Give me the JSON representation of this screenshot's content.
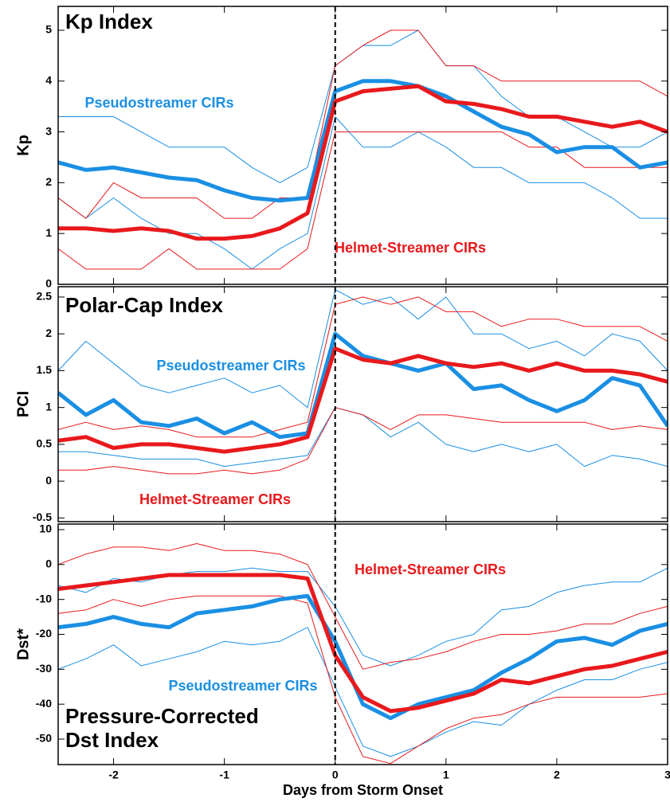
{
  "chart_data": [
    {
      "type": "line",
      "title": "Kp Index",
      "ylabel": "Kp",
      "x": [
        -2.5,
        -2.25,
        -2,
        -1.75,
        -1.5,
        -1.25,
        -1,
        -0.75,
        -0.5,
        -0.25,
        0,
        0.25,
        0.5,
        0.75,
        1,
        1.25,
        1.5,
        1.75,
        2,
        2.25,
        2.5,
        2.75,
        3
      ],
      "xlim": [
        -2.5,
        3
      ],
      "ylim": [
        0,
        5.47
      ],
      "yticks": [
        0,
        1,
        2,
        3,
        4,
        5
      ],
      "vline": 0,
      "series": [
        {
          "color": "#1a8fe3",
          "linewidth": 1,
          "values": [
            3.3,
            3.3,
            3.3,
            3.0,
            2.7,
            2.7,
            2.7,
            2.3,
            2.0,
            2.3,
            4.3,
            4.7,
            4.7,
            5.0,
            4.3,
            4.3,
            3.7,
            3.3,
            3.3,
            3.0,
            2.7,
            2.7,
            3.0
          ]
        },
        {
          "color": "#1a8fe3",
          "linewidth": 1,
          "values": [
            1.7,
            1.3,
            1.7,
            1.3,
            1.0,
            1.0,
            0.7,
            0.3,
            0.7,
            1.0,
            3.3,
            2.7,
            2.7,
            3.0,
            2.7,
            2.3,
            2.3,
            2.0,
            2.0,
            2.0,
            1.7,
            1.3,
            1.3
          ]
        },
        {
          "color": "#e8191c",
          "linewidth": 1,
          "values": [
            1.7,
            1.3,
            2.0,
            1.7,
            1.7,
            1.7,
            1.3,
            1.3,
            1.7,
            1.7,
            4.3,
            4.7,
            5.0,
            5.0,
            4.3,
            4.3,
            4.0,
            4.0,
            4.0,
            4.0,
            4.0,
            4.0,
            3.7
          ]
        },
        {
          "color": "#e8191c",
          "linewidth": 1,
          "values": [
            0.7,
            0.3,
            0.3,
            0.3,
            0.7,
            0.3,
            0.3,
            0.3,
            0.3,
            0.7,
            3.0,
            3.0,
            3.0,
            3.0,
            3.0,
            3.0,
            3.0,
            2.7,
            2.7,
            2.3,
            2.3,
            2.3,
            2.3
          ]
        },
        {
          "name": "Pseudostreamer CIRs",
          "color": "#1a8fe3",
          "linewidth": 5,
          "values": [
            2.4,
            2.25,
            2.3,
            2.2,
            2.1,
            2.05,
            1.85,
            1.7,
            1.65,
            1.7,
            3.8,
            4.0,
            4.0,
            3.9,
            3.7,
            3.4,
            3.1,
            2.95,
            2.6,
            2.7,
            2.7,
            2.3,
            2.4
          ]
        },
        {
          "name": "Helmet-Streamer CIRs",
          "color": "#e8191c",
          "linewidth": 5,
          "values": [
            1.1,
            1.1,
            1.05,
            1.1,
            1.05,
            0.9,
            0.9,
            0.95,
            1.1,
            1.4,
            3.6,
            3.8,
            3.85,
            3.9,
            3.6,
            3.55,
            3.45,
            3.3,
            3.3,
            3.2,
            3.1,
            3.2,
            3.0
          ]
        }
      ]
    },
    {
      "type": "line",
      "title": "Polar-Cap Index",
      "ylabel": "PCI",
      "x": [
        -2.5,
        -2.25,
        -2,
        -1.75,
        -1.5,
        -1.25,
        -1,
        -0.75,
        -0.5,
        -0.25,
        0,
        0.25,
        0.5,
        0.75,
        1,
        1.25,
        1.5,
        1.75,
        2,
        2.25,
        2.5,
        2.75,
        3
      ],
      "xlim": [
        -2.5,
        3
      ],
      "ylim": [
        -0.55,
        2.64
      ],
      "yticks": [
        -0.5,
        0,
        0.5,
        1,
        1.5,
        2,
        2.5
      ],
      "vline": 0,
      "series": [
        {
          "color": "#1a8fe3",
          "linewidth": 1,
          "values": [
            1.5,
            1.9,
            1.6,
            1.3,
            1.2,
            1.3,
            1.4,
            1.2,
            1.3,
            1.0,
            2.6,
            2.4,
            2.5,
            2.2,
            2.5,
            2.0,
            2.0,
            1.8,
            1.9,
            1.7,
            2.0,
            1.9,
            1.5
          ]
        },
        {
          "color": "#1a8fe3",
          "linewidth": 1,
          "values": [
            0.4,
            0.4,
            0.35,
            0.3,
            0.3,
            0.3,
            0.2,
            0.25,
            0.3,
            0.35,
            1.0,
            0.9,
            0.6,
            0.8,
            0.5,
            0.4,
            0.5,
            0.4,
            0.5,
            0.2,
            0.35,
            0.3,
            0.2
          ]
        },
        {
          "color": "#e8191c",
          "linewidth": 1,
          "values": [
            0.7,
            0.8,
            0.7,
            0.75,
            0.7,
            0.6,
            0.6,
            0.6,
            0.7,
            0.8,
            2.4,
            2.5,
            2.4,
            2.5,
            2.3,
            2.3,
            2.1,
            2.2,
            2.2,
            2.1,
            2.1,
            2.1,
            1.9
          ]
        },
        {
          "color": "#e8191c",
          "linewidth": 1,
          "values": [
            0.15,
            0.15,
            0.2,
            0.15,
            0.1,
            0.1,
            0.15,
            0.1,
            0.15,
            0.3,
            1.0,
            0.9,
            0.7,
            0.9,
            0.9,
            0.85,
            0.8,
            0.8,
            0.8,
            0.8,
            0.7,
            0.75,
            0.7
          ]
        },
        {
          "name": "Pseudostreamer CIRs",
          "color": "#1a8fe3",
          "linewidth": 5,
          "values": [
            1.2,
            0.9,
            1.1,
            0.8,
            0.75,
            0.85,
            0.65,
            0.8,
            0.6,
            0.65,
            2.0,
            1.7,
            1.6,
            1.5,
            1.6,
            1.25,
            1.3,
            1.1,
            0.95,
            1.1,
            1.4,
            1.3,
            0.75
          ]
        },
        {
          "name": "Helmet-Streamer CIRs",
          "color": "#e8191c",
          "linewidth": 5,
          "values": [
            0.55,
            0.6,
            0.45,
            0.5,
            0.5,
            0.45,
            0.4,
            0.45,
            0.5,
            0.6,
            1.8,
            1.65,
            1.6,
            1.7,
            1.6,
            1.55,
            1.6,
            1.5,
            1.6,
            1.5,
            1.5,
            1.45,
            1.35
          ]
        }
      ]
    },
    {
      "type": "line",
      "title": "Pressure-Corrected Dst Index",
      "ylabel": "Dst*",
      "xlabel": "Days from Storm Onset",
      "x": [
        -2.5,
        -2.25,
        -2,
        -1.75,
        -1.5,
        -1.25,
        -1,
        -0.75,
        -0.5,
        -0.25,
        0,
        0.25,
        0.5,
        0.75,
        1,
        1.25,
        1.5,
        1.75,
        2,
        2.25,
        2.5,
        2.75,
        3
      ],
      "xlim": [
        -2.5,
        3
      ],
      "xticks": [
        -2,
        -1,
        0,
        1,
        2,
        3
      ],
      "ylim": [
        -57.3,
        11.6
      ],
      "yticks": [
        -50,
        -40,
        -30,
        -20,
        -10,
        0,
        10
      ],
      "vline": 0,
      "series": [
        {
          "color": "#1a8fe3",
          "linewidth": 1,
          "values": [
            -6,
            -8,
            -4,
            -5,
            -3,
            -2,
            -2,
            -1,
            -2,
            -2,
            -12,
            -26,
            -29,
            -26,
            -22,
            -20,
            -13,
            -12,
            -8,
            -6,
            -5,
            -5,
            -1
          ]
        },
        {
          "color": "#1a8fe3",
          "linewidth": 1,
          "values": [
            -30,
            -27,
            -23,
            -29,
            -27,
            -25,
            -22,
            -23,
            -22,
            -18,
            -35,
            -52,
            -55,
            -52,
            -48,
            -45,
            -46,
            -40,
            -36,
            -33,
            -33,
            -30,
            -28
          ]
        },
        {
          "color": "#e8191c",
          "linewidth": 1,
          "values": [
            0,
            3,
            5,
            5,
            4,
            6,
            4,
            4,
            3,
            0,
            -15,
            -30,
            -28,
            -27,
            -25,
            -22,
            -20,
            -20,
            -19,
            -17,
            -17,
            -14,
            -12
          ]
        },
        {
          "color": "#e8191c",
          "linewidth": 1,
          "values": [
            -14,
            -13,
            -10,
            -12,
            -10,
            -9,
            -9,
            -9,
            -9,
            -11,
            -38,
            -55,
            -57,
            -52,
            -47,
            -44,
            -43,
            -40,
            -38,
            -38,
            -38,
            -38,
            -37
          ]
        },
        {
          "name": "Pseudostreamer CIRs",
          "color": "#1a8fe3",
          "linewidth": 5,
          "values": [
            -18,
            -17,
            -15,
            -17,
            -18,
            -14,
            -13,
            -12,
            -10,
            -9,
            -22,
            -40,
            -44,
            -40,
            -38,
            -36,
            -31,
            -27,
            -22,
            -21,
            -23,
            -19,
            -17
          ]
        },
        {
          "name": "Helmet-Streamer CIRs",
          "color": "#e8191c",
          "linewidth": 5,
          "values": [
            -7,
            -6,
            -5,
            -4,
            -3,
            -3,
            -3,
            -3,
            -3,
            -4,
            -26,
            -38,
            -42,
            -41,
            -39,
            -37,
            -33,
            -34,
            -32,
            -30,
            -29,
            -27,
            -25
          ]
        }
      ]
    }
  ]
}
